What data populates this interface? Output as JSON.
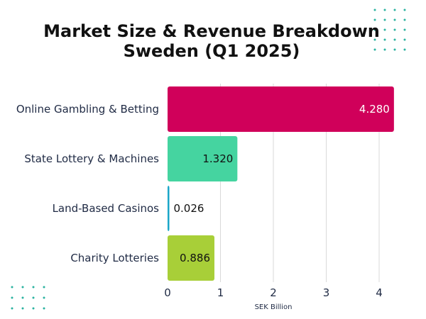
{
  "chart_data": {
    "type": "bar",
    "orientation": "horizontal",
    "title": "Market Size & Revenue Breakdown",
    "subtitle": "Sweden (Q1 2025)",
    "categories": [
      "Online Gambling & Betting",
      "State Lottery & Machines",
      "Land-Based Casinos",
      "Charity Lotteries"
    ],
    "values": [
      4.28,
      1.32,
      0.026,
      0.886
    ],
    "value_labels": [
      "4.280",
      "1.320",
      "0.026",
      "0.886"
    ],
    "bar_colors": [
      "#d0005a",
      "#45d4a0",
      "#1aa6c8",
      "#a8cf38"
    ],
    "value_label_colors": [
      "#ffffff",
      "#111111",
      "#111111",
      "#111111"
    ],
    "value_label_position": [
      "inside-end",
      "inside-end",
      "outside",
      "inside-end"
    ],
    "xlabel": "SEK Billion",
    "ylabel": "",
    "xlim": [
      0,
      4.4
    ],
    "xticks": [
      0,
      1,
      2,
      3,
      4
    ],
    "xtick_labels": [
      "0",
      "1",
      "2",
      "3",
      "4"
    ],
    "grid": true,
    "legend": "none"
  },
  "decorations": {
    "dot_color": "#2bb3a0",
    "dot_grids": [
      "top-right",
      "bottom-left"
    ]
  }
}
